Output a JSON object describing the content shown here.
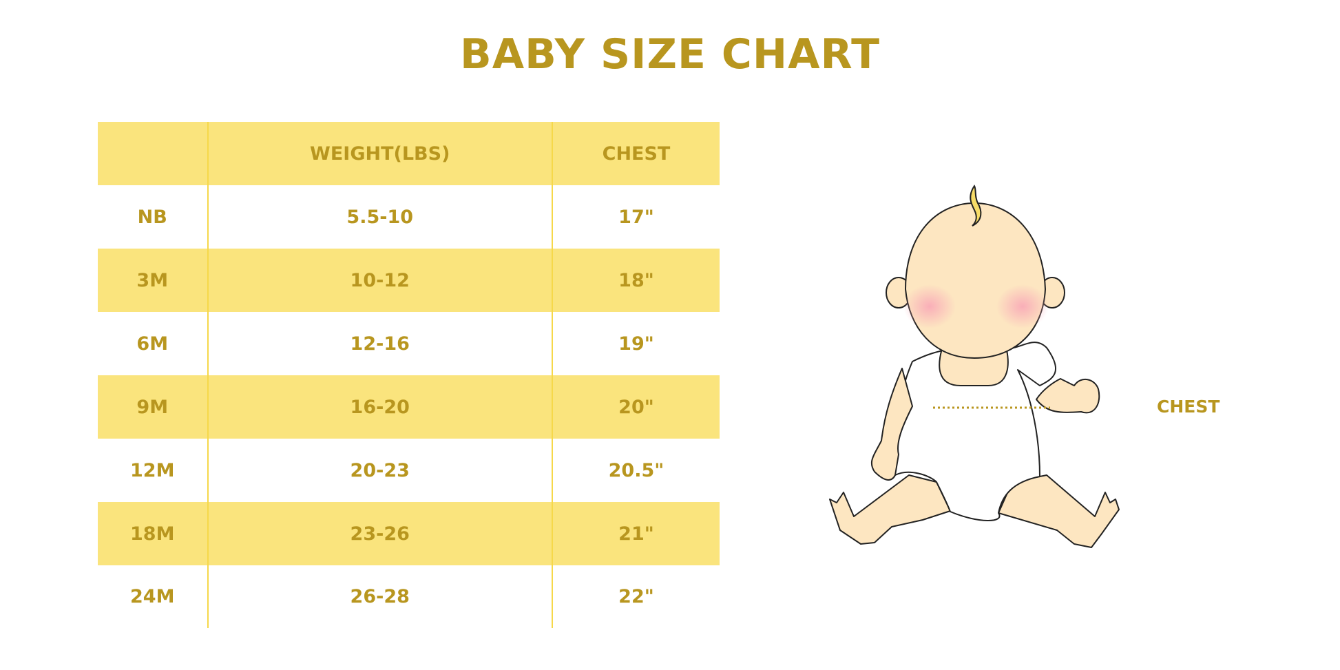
{
  "title": "BABY SIZE CHART",
  "table": {
    "headers": [
      "",
      "WEIGHT(LBS)",
      "CHEST"
    ],
    "rows": [
      [
        "NB",
        "5.5-10",
        "17\""
      ],
      [
        "3M",
        "10-12",
        "18\""
      ],
      [
        "6M",
        "12-16",
        "19\""
      ],
      [
        "9M",
        "16-20",
        "20\""
      ],
      [
        "12M",
        "20-23",
        "20.5\""
      ],
      [
        "18M",
        "23-26",
        "21\""
      ],
      [
        "24M",
        "26-28",
        "22\""
      ]
    ]
  },
  "illustration": {
    "chest_label": "CHEST"
  },
  "colors": {
    "text": "#b8961f",
    "band": "#fae47d",
    "skin": "#fde6c1"
  }
}
